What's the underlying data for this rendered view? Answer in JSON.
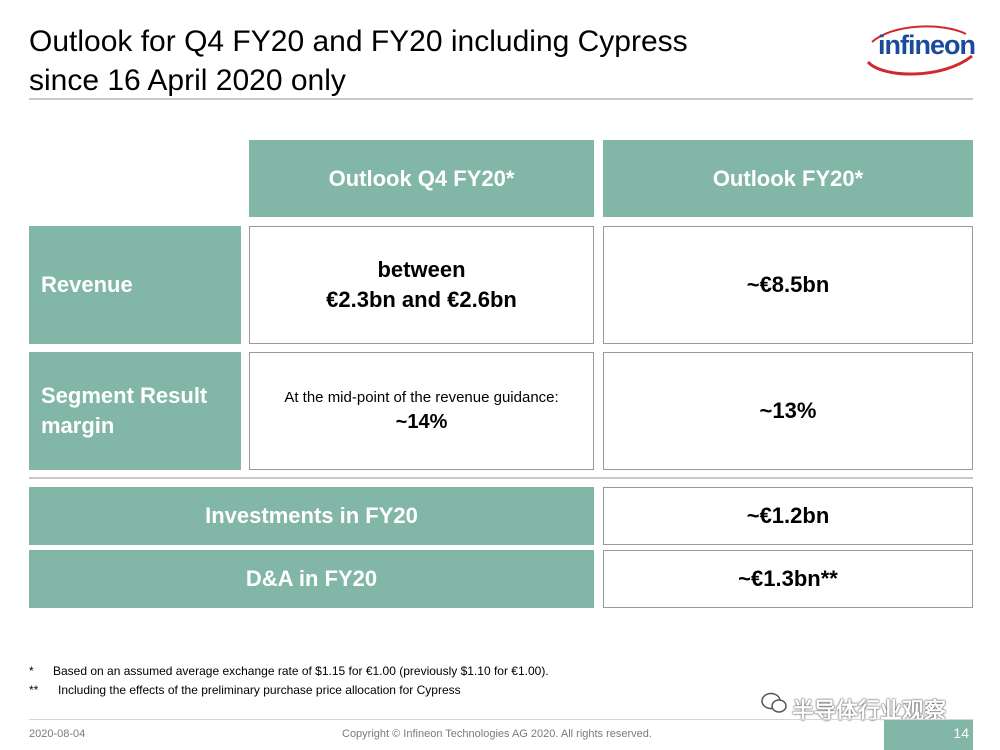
{
  "slide": {
    "title_line1": "Outlook for Q4 FY20 and FY20 including Cypress",
    "title_line2": "since 16 April 2020 only",
    "logo_text": "infineon"
  },
  "table": {
    "headers": [
      "Outlook Q4 FY20*",
      "Outlook FY20*"
    ],
    "revenue": {
      "label": "Revenue",
      "q4_line1": "between",
      "q4_line2": "€2.3bn and €2.6bn",
      "fy": "~€8.5bn"
    },
    "segment": {
      "label_line1": "Segment Result",
      "label_line2": "margin",
      "q4_note": "At the mid-point of the revenue guidance:",
      "q4_value": "~14%",
      "fy": "~13%"
    },
    "investments": {
      "label": "Investments in FY20",
      "value": "~€1.2bn"
    },
    "da": {
      "label": "D&A in FY20",
      "value": "~€1.3bn**"
    }
  },
  "footnotes": [
    {
      "mark": "*",
      "text": "Based on an assumed average exchange rate of $1.15 for €1.00 (previously $1.10 for €1.00)."
    },
    {
      "mark": "**",
      "text": "Including the effects of the preliminary purchase price allocation for Cypress"
    }
  ],
  "footer": {
    "date": "2020-08-04",
    "copyright": "Copyright © Infineon Technologies AG 2020. All rights reserved.",
    "page": "14",
    "watermark": "半导体行业观察"
  },
  "colors": {
    "accent": "#82b7a8",
    "logo_blue": "#1a4a9a",
    "logo_red": "#d0282e"
  }
}
